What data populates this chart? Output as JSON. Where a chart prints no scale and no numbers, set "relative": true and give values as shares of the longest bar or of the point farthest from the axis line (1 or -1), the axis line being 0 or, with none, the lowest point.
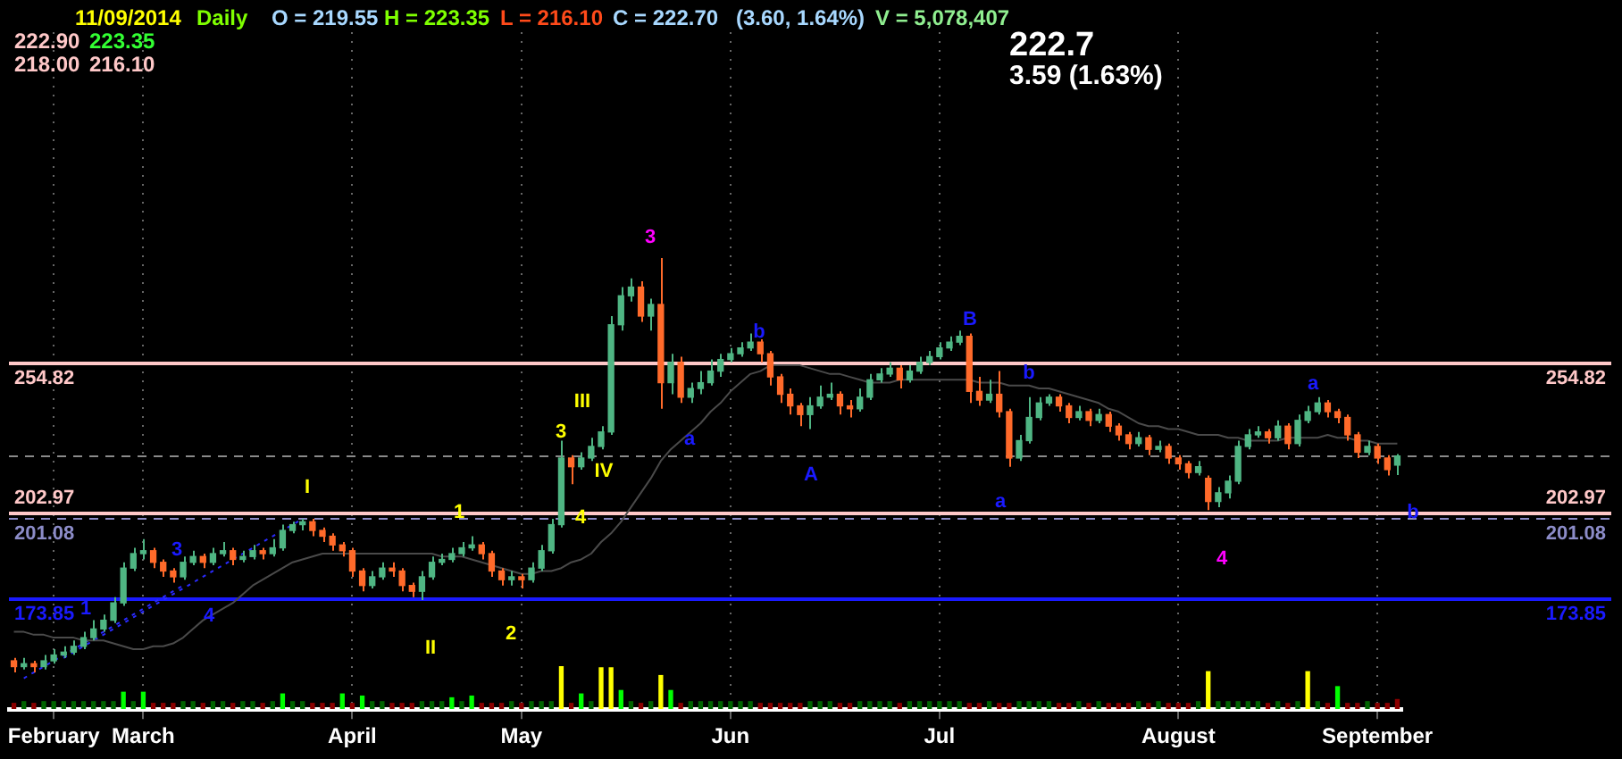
{
  "chart_data": [
    {
      "type": "candlestick",
      "title": "222.7",
      "subtitle": "3.59 (1.63%)",
      "annotations": [
        "11/09/2014",
        "Daily",
        "O = 219.55",
        "H = 223.35",
        "L = 216.10",
        "C = 222.70",
        "(3.60,  1.64%)",
        "V = 5,078,407",
        "222.90",
        "223.35",
        "218.00",
        "216.10",
        "I",
        "1",
        "II",
        "2",
        "III",
        "3",
        "IV",
        "4",
        "3",
        "a",
        "b",
        "A",
        "B",
        "b",
        "a",
        "4",
        "a",
        "b",
        "1",
        "3",
        "4"
      ],
      "categories": [
        null,
        null,
        null,
        null,
        "February",
        null,
        null,
        null,
        null,
        null,
        null,
        null,
        null,
        "March",
        null,
        null,
        null,
        null,
        null,
        null,
        null,
        null,
        null,
        null,
        null,
        null,
        null,
        null,
        null,
        null,
        null,
        null,
        null,
        null,
        "April",
        null,
        null,
        null,
        null,
        null,
        null,
        null,
        null,
        null,
        null,
        null,
        null,
        null,
        null,
        null,
        null,
        "May",
        null,
        null,
        null,
        null,
        null,
        null,
        null,
        null,
        null,
        null,
        null,
        null,
        null,
        null,
        null,
        null,
        null,
        null,
        null,
        null,
        "Jun",
        null,
        null,
        null,
        null,
        null,
        null,
        null,
        null,
        null,
        null,
        null,
        null,
        null,
        null,
        null,
        null,
        null,
        null,
        null,
        null,
        "Jul",
        null,
        null,
        null,
        null,
        null,
        null,
        null,
        null,
        null,
        null,
        null,
        null,
        null,
        null,
        null,
        null,
        null,
        null,
        null,
        null,
        null,
        null,
        null,
        "August",
        null,
        null,
        null,
        null,
        null,
        null,
        null,
        null,
        null,
        null,
        null,
        null,
        null,
        null,
        null,
        null,
        null,
        null,
        null,
        "September",
        null,
        null
      ],
      "ylim": [
        135,
        369
      ],
      "grid": "x",
      "tick_labels": "x",
      "ref_lines": [
        {
          "axis": "y",
          "value": 202.97,
          "label": "202.97",
          "color": "#ffc8c8",
          "line_style": "solid"
        },
        {
          "axis": "y",
          "value": 173.85,
          "label": "173.85",
          "color": "#1a1aff",
          "line_style": "solid"
        },
        {
          "axis": "y",
          "value": 201.08,
          "label": "201.08",
          "color": "#8c8cc8",
          "line_style": "dashed"
        },
        {
          "axis": "y",
          "value": 254.82,
          "label": "254.82",
          "color": "#ffc8c8",
          "line_style": "solid"
        },
        {
          "axis": "y",
          "value": 222.7,
          "color": "#8a8a8a",
          "line_style": "dashed"
        }
      ],
      "series": [
        {
          "type": "line",
          "color": "#4a4a4a",
          "line_style": "solid",
          "values": [
            162,
            162,
            161,
            161,
            160,
            160,
            160,
            159,
            159,
            159,
            158,
            157,
            156,
            156,
            157,
            157,
            158,
            160,
            163,
            166,
            168,
            170,
            172,
            175,
            178,
            180,
            182,
            184,
            186,
            187,
            188,
            189,
            189,
            189,
            189,
            189,
            189,
            189,
            189,
            189,
            189,
            189,
            189,
            188,
            188,
            188,
            187,
            186,
            185,
            184,
            183,
            182,
            182,
            183,
            183,
            184,
            186,
            187,
            189,
            193,
            196,
            200,
            205,
            210,
            215,
            221,
            225,
            228,
            231,
            234,
            238,
            241,
            245,
            248,
            251,
            252,
            254,
            254,
            254,
            254,
            253,
            252,
            251,
            251,
            250,
            249,
            248,
            248,
            248,
            249,
            249,
            249,
            249,
            249,
            249,
            249,
            249,
            248,
            248,
            248,
            247,
            247,
            247,
            246,
            246,
            245,
            244,
            243,
            242,
            241,
            239,
            238,
            236,
            234,
            233,
            233,
            232,
            232,
            231,
            230,
            230,
            230,
            229,
            229,
            228,
            228,
            228,
            228,
            229,
            229,
            229,
            229,
            230,
            229,
            229,
            228,
            228,
            227,
            227,
            227
          ]
        },
        {
          "type": "line",
          "color": "#2a2aff",
          "line_style": "dotted",
          "values": [
            null,
            146,
            148,
            150,
            152,
            154,
            156,
            158,
            160,
            162,
            164,
            166,
            168,
            170,
            172,
            174,
            176,
            178,
            null,
            null,
            null,
            null,
            null,
            null,
            null,
            null,
            null,
            null,
            null,
            null,
            null,
            null,
            null,
            null,
            null,
            null,
            null,
            null,
            null,
            null,
            null,
            null,
            null,
            null,
            null,
            null,
            null,
            null,
            null,
            null,
            null,
            null,
            null,
            null,
            null,
            null,
            null,
            null,
            null,
            null,
            null,
            null,
            null,
            null,
            null,
            null,
            null,
            null,
            null,
            null,
            null,
            null,
            null,
            null,
            null,
            null,
            null,
            null,
            null,
            null,
            null,
            null,
            null,
            null,
            null,
            null,
            null,
            null,
            null,
            null,
            null,
            null,
            null,
            null,
            null,
            null,
            null,
            null,
            null,
            null,
            null,
            null,
            null,
            null,
            null,
            null,
            null,
            null,
            null,
            null,
            null,
            null,
            null,
            null,
            null,
            null,
            null,
            null,
            null,
            null,
            null,
            null,
            null,
            null,
            null,
            null,
            null,
            null,
            null,
            null,
            null,
            null,
            null,
            null,
            null,
            null,
            null,
            null,
            null,
            null
          ]
        },
        {
          "type": "line",
          "color": "#2a2aff",
          "line_style": "dotted",
          "values": [
            null,
            null,
            null,
            null,
            null,
            153,
            155,
            157,
            159,
            161,
            163,
            165,
            167,
            169,
            171,
            173,
            175,
            177,
            179,
            181,
            183,
            185,
            187,
            189,
            191,
            193,
            195,
            197,
            199,
            201,
            null,
            null,
            null,
            null,
            null,
            null,
            null,
            null,
            null,
            null,
            null,
            null,
            null,
            null,
            null,
            null,
            null,
            null,
            null,
            null,
            null,
            null,
            null,
            null,
            null,
            null,
            null,
            null,
            null,
            null,
            null,
            null,
            null,
            null,
            null,
            null,
            null,
            null,
            null,
            null,
            null,
            null,
            null,
            null,
            null,
            null,
            null,
            null,
            null,
            null,
            null,
            null,
            null,
            null,
            null,
            null,
            null,
            null,
            null,
            null,
            null,
            null,
            null,
            null,
            null,
            null,
            null,
            null,
            null,
            null,
            null,
            null,
            null,
            null,
            null,
            null,
            null,
            null,
            null,
            null,
            null,
            null,
            null,
            null,
            null,
            null,
            null,
            null,
            null,
            null,
            null,
            null,
            null,
            null,
            null,
            null,
            null,
            null,
            null,
            null,
            null,
            null,
            null,
            null,
            null,
            null,
            null,
            null,
            null,
            null
          ]
        },
        {
          "ohlc": [
            [
              152,
              153,
              148,
              150
            ],
            [
              150,
              153,
              149,
              151
            ],
            [
              151,
              152,
              148,
              150
            ],
            [
              150,
              154,
              149,
              152
            ],
            [
              152,
              156,
              151,
              154
            ],
            [
              154,
              157,
              153,
              155
            ],
            [
              155,
              159,
              154,
              157
            ],
            [
              157,
              162,
              156,
              160
            ],
            [
              160,
              166,
              159,
              163
            ],
            [
              163,
              168,
              162,
              166
            ],
            [
              166,
              174,
              165,
              172
            ],
            [
              172,
              186,
              171,
              184
            ],
            [
              184,
              191,
              183,
              189
            ],
            [
              189,
              194,
              187,
              190
            ],
            [
              190,
              191,
              184,
              186
            ],
            [
              186,
              187,
              181,
              183
            ],
            [
              183,
              184,
              179,
              181
            ],
            [
              181,
              188,
              180,
              186
            ],
            [
              186,
              190,
              185,
              188
            ],
            [
              188,
              189,
              184,
              186
            ],
            [
              186,
              191,
              185,
              189
            ],
            [
              189,
              193,
              188,
              190
            ],
            [
              190,
              191,
              185,
              187
            ],
            [
              187,
              190,
              186,
              188
            ],
            [
              188,
              192,
              187,
              190
            ],
            [
              190,
              191,
              187,
              189
            ],
            [
              189,
              194,
              188,
              191
            ],
            [
              191,
              199,
              190,
              197
            ],
            [
              197,
              200,
              196,
              199
            ],
            [
              199,
              201,
              197,
              200
            ],
            [
              200,
              201,
              195,
              197
            ],
            [
              197,
              198,
              193,
              195
            ],
            [
              195,
              196,
              190,
              192
            ],
            [
              192,
              193,
              188,
              190
            ],
            [
              190,
              191,
              181,
              183
            ],
            [
              183,
              184,
              176,
              178
            ],
            [
              178,
              183,
              177,
              181
            ],
            [
              181,
              186,
              180,
              184
            ],
            [
              184,
              186,
              181,
              183
            ],
            [
              183,
              184,
              176,
              178
            ],
            [
              178,
              179,
              174,
              176
            ],
            [
              176,
              183,
              173,
              181
            ],
            [
              181,
              188,
              180,
              186
            ],
            [
              186,
              189,
              185,
              187
            ],
            [
              187,
              191,
              186,
              189
            ],
            [
              189,
              193,
              188,
              191
            ],
            [
              191,
              195,
              190,
              192
            ],
            [
              192,
              193,
              187,
              189
            ],
            [
              189,
              190,
              181,
              183
            ],
            [
              183,
              184,
              178,
              180
            ],
            [
              180,
              183,
              178,
              181
            ],
            [
              181,
              182,
              177,
              180
            ],
            [
              180,
              186,
              179,
              184
            ],
            [
              184,
              192,
              183,
              190
            ],
            [
              190,
              201,
              189,
              199
            ],
            [
              199,
              228,
              198,
              222
            ],
            [
              222,
              223,
              213,
              219
            ],
            [
              219,
              224,
              218,
              222
            ],
            [
              222,
              229,
              221,
              226
            ],
            [
              226,
              233,
              225,
              231
            ],
            [
              231,
              271,
              230,
              268
            ],
            [
              268,
              281,
              266,
              278
            ],
            [
              278,
              284,
              276,
              281
            ],
            [
              281,
              283,
              269,
              271
            ],
            [
              271,
              277,
              266,
              275
            ],
            [
              275,
              291,
              239,
              248
            ],
            [
              248,
              258,
              244,
              255
            ],
            [
              255,
              257,
              241,
              243
            ],
            [
              243,
              248,
              241,
              246
            ],
            [
              246,
              252,
              244,
              248
            ],
            [
              248,
              256,
              247,
              252
            ],
            [
              252,
              258,
              250,
              256
            ],
            [
              256,
              260,
              255,
              258
            ],
            [
              258,
              262,
              257,
              260
            ],
            [
              260,
              265,
              259,
              262
            ],
            [
              262,
              263,
              255,
              258
            ],
            [
              258,
              259,
              247,
              250
            ],
            [
              250,
              251,
              241,
              244
            ],
            [
              244,
              246,
              237,
              240
            ],
            [
              240,
              241,
              233,
              237
            ],
            [
              237,
              243,
              232,
              240
            ],
            [
              240,
              247,
              239,
              243
            ],
            [
              243,
              248,
              242,
              244
            ],
            [
              244,
              245,
              237,
              240
            ],
            [
              240,
              242,
              236,
              239
            ],
            [
              239,
              246,
              238,
              243
            ],
            [
              243,
              251,
              242,
              249
            ],
            [
              249,
              253,
              248,
              251
            ],
            [
              251,
              255,
              250,
              253
            ],
            [
              253,
              254,
              246,
              249
            ],
            [
              249,
              254,
              248,
              252
            ],
            [
              252,
              257,
              251,
              255
            ],
            [
              255,
              259,
              254,
              257
            ],
            [
              257,
              262,
              256,
              260
            ],
            [
              260,
              264,
              259,
              262
            ],
            [
              262,
              266,
              261,
              264
            ],
            [
              264,
              265,
              241,
              245
            ],
            [
              245,
              250,
              240,
              242
            ],
            [
              242,
              249,
              241,
              244
            ],
            [
              244,
              252,
              236,
              238
            ],
            [
              238,
              239,
              219,
              222
            ],
            [
              222,
              230,
              221,
              228
            ],
            [
              228,
              243,
              227,
              236
            ],
            [
              236,
              243,
              235,
              241
            ],
            [
              241,
              244,
              240,
              243
            ],
            [
              243,
              244,
              238,
              240
            ],
            [
              240,
              241,
              234,
              236
            ],
            [
              236,
              240,
              235,
              238
            ],
            [
              238,
              239,
              233,
              235
            ],
            [
              235,
              239,
              234,
              237
            ],
            [
              237,
              238,
              231,
              233
            ],
            [
              233,
              234,
              228,
              230
            ],
            [
              230,
              231,
              225,
              227
            ],
            [
              227,
              231,
              226,
              229
            ],
            [
              229,
              230,
              223,
              225
            ],
            [
              225,
              228,
              224,
              226
            ],
            [
              226,
              227,
              220,
              222
            ],
            [
              222,
              223,
              218,
              220
            ],
            [
              220,
              221,
              215,
              217
            ],
            [
              217,
              221,
              216,
              219
            ],
            [
              215,
              216,
              204,
              207
            ],
            [
              207,
              212,
              205,
              210
            ],
            [
              210,
              216,
              208,
              214
            ],
            [
              214,
              228,
              213,
              226
            ],
            [
              226,
              232,
              225,
              230
            ],
            [
              230,
              233,
              229,
              231
            ],
            [
              231,
              232,
              227,
              229
            ],
            [
              229,
              235,
              228,
              233
            ],
            [
              233,
              234,
              225,
              227
            ],
            [
              227,
              237,
              226,
              235
            ],
            [
              235,
              240,
              234,
              238
            ],
            [
              238,
              243,
              237,
              241
            ],
            [
              241,
              242,
              236,
              238
            ],
            [
              238,
              239,
              234,
              236
            ],
            [
              236,
              237,
              228,
              230
            ],
            [
              230,
              231,
              222,
              224
            ],
            [
              224,
              228,
              223,
              226
            ],
            [
              226,
              227,
              220,
              222
            ],
            [
              222,
              223,
              216,
              218
            ],
            [
              219.55,
              223.35,
              216.1,
              222.7
            ]
          ],
          "colors": [
            "#ff6a2a",
            "#4fb583",
            "#ff6a2a",
            "#4fb583",
            "#4fb583",
            "#4fb583",
            "#4fb583",
            "#4fb583",
            "#4fb583",
            "#4fb583",
            "#4fb583",
            "#4fb583",
            "#4fb583",
            "#4fb583",
            "#ff6a2a",
            "#ff6a2a",
            "#ff6a2a",
            "#4fb583",
            "#4fb583",
            "#ff6a2a",
            "#4fb583",
            "#4fb583",
            "#ff6a2a",
            "#4fb583",
            "#4fb583",
            "#ff6a2a",
            "#4fb583",
            "#4fb583",
            "#4fb583",
            "#4fb583",
            "#ff6a2a",
            "#ff6a2a",
            "#ff6a2a",
            "#ff6a2a",
            "#ff6a2a",
            "#ff6a2a",
            "#4fb583",
            "#4fb583",
            "#ff6a2a",
            "#ff6a2a",
            "#ff6a2a",
            "#4fb583",
            "#4fb583",
            "#4fb583",
            "#4fb583",
            "#4fb583",
            "#4fb583",
            "#ff6a2a",
            "#ff6a2a",
            "#ff6a2a",
            "#4fb583",
            "#ff6a2a",
            "#4fb583",
            "#4fb583",
            "#4fb583",
            "#4fb583",
            "#ff6a2a",
            "#4fb583",
            "#4fb583",
            "#4fb583",
            "#4fb583",
            "#4fb583",
            "#4fb583",
            "#ff6a2a",
            "#4fb583",
            "#ff6a2a",
            "#4fb583",
            "#ff6a2a",
            "#4fb583",
            "#4fb583",
            "#4fb583",
            "#4fb583",
            "#4fb583",
            "#4fb583",
            "#4fb583",
            "#ff6a2a",
            "#ff6a2a",
            "#ff6a2a",
            "#ff6a2a",
            "#ff6a2a",
            "#4fb583",
            "#4fb583",
            "#4fb583",
            "#ff6a2a",
            "#ff6a2a",
            "#4fb583",
            "#4fb583",
            "#4fb583",
            "#4fb583",
            "#ff6a2a",
            "#4fb583",
            "#4fb583",
            "#4fb583",
            "#4fb583",
            "#4fb583",
            "#4fb583",
            "#ff6a2a",
            "#ff6a2a",
            "#4fb583",
            "#ff6a2a",
            "#ff6a2a",
            "#4fb583",
            "#4fb583",
            "#4fb583",
            "#4fb583",
            "#ff6a2a",
            "#ff6a2a",
            "#4fb583",
            "#ff6a2a",
            "#4fb583",
            "#ff6a2a",
            "#ff6a2a",
            "#ff6a2a",
            "#4fb583",
            "#ff6a2a",
            "#4fb583",
            "#ff6a2a",
            "#ff6a2a",
            "#ff6a2a",
            "#4fb583",
            "#ff6a2a",
            "#4fb583",
            "#4fb583",
            "#4fb583",
            "#4fb583",
            "#4fb583",
            "#ff6a2a",
            "#4fb583",
            "#ff6a2a",
            "#4fb583",
            "#4fb583",
            "#4fb583",
            "#ff6a2a",
            "#ff6a2a",
            "#ff6a2a",
            "#ff6a2a",
            "#4fb583",
            "#ff6a2a",
            "#ff6a2a",
            "#4fb583"
          ]
        }
      ]
    },
    {
      "type": "bar",
      "relative": true,
      "tick_labels": false,
      "categories": [
        null,
        null,
        null,
        null,
        null,
        null,
        null,
        null,
        null,
        null,
        null,
        null,
        null,
        null,
        null,
        null,
        null,
        null,
        null,
        null,
        null,
        null,
        null,
        null,
        null,
        null,
        null,
        null,
        null,
        null,
        null,
        null,
        null,
        null,
        null,
        null,
        null,
        null,
        null,
        null,
        null,
        null,
        null,
        null,
        null,
        null,
        null,
        null,
        null,
        null,
        null,
        null,
        null,
        null,
        null,
        null,
        null,
        null,
        null,
        null,
        null,
        null,
        null,
        null,
        null,
        null,
        null,
        null,
        null,
        null,
        null,
        null,
        null,
        null,
        null,
        null,
        null,
        null,
        null,
        null,
        null,
        null,
        null,
        null,
        null,
        null,
        null,
        null,
        null,
        null,
        null,
        null,
        null,
        null,
        null,
        null,
        null,
        null,
        null,
        null,
        null,
        null,
        null,
        null,
        null,
        null,
        null,
        null,
        null,
        null,
        null,
        null,
        null,
        null,
        null,
        null,
        null,
        null,
        null,
        null,
        null,
        null,
        null,
        null,
        null,
        null,
        null,
        null,
        null,
        null,
        null,
        null,
        null,
        null,
        null,
        null,
        null,
        null,
        null,
        null
      ],
      "values": [
        0.13,
        0.17,
        0.13,
        0.17,
        0.17,
        0.17,
        0.17,
        0.17,
        0.17,
        0.17,
        0.17,
        0.39,
        0.17,
        0.39,
        0.13,
        0.13,
        0.13,
        0.17,
        0.17,
        0.13,
        0.17,
        0.17,
        0.13,
        0.17,
        0.17,
        0.13,
        0.17,
        0.35,
        0.17,
        0.17,
        0.13,
        0.13,
        0.13,
        0.35,
        0.13,
        0.3,
        0.17,
        0.17,
        0.13,
        0.13,
        0.13,
        0.17,
        0.17,
        0.17,
        0.26,
        0.17,
        0.3,
        0.13,
        0.13,
        0.13,
        0.17,
        0.13,
        0.17,
        0.17,
        0.17,
        1,
        0.13,
        0.35,
        0.17,
        0.96,
        0.96,
        0.43,
        0.17,
        0.13,
        0.17,
        0.78,
        0.43,
        0.13,
        0.17,
        0.17,
        0.17,
        0.17,
        0.17,
        0.17,
        0.17,
        0.13,
        0.13,
        0.13,
        0.13,
        0.13,
        0.17,
        0.17,
        0.17,
        0.13,
        0.13,
        0.17,
        0.17,
        0.17,
        0.17,
        0.13,
        0.17,
        0.17,
        0.17,
        0.17,
        0.17,
        0.17,
        0.13,
        0.13,
        0.17,
        0.13,
        0.13,
        0.17,
        0.17,
        0.17,
        0.17,
        0.13,
        0.13,
        0.17,
        0.13,
        0.17,
        0.13,
        0.13,
        0.13,
        0.17,
        0.13,
        0.17,
        0.13,
        0.13,
        0.13,
        0.17,
        0.87,
        0.17,
        0.17,
        0.17,
        0.17,
        0.17,
        0.13,
        0.17,
        0.13,
        0.17,
        0.87,
        0.17,
        0.13,
        0.52,
        0.13,
        0.13,
        0.17,
        0.13,
        0.13,
        0.22
      ],
      "colors": [
        "#8b0000",
        "#006400",
        "#8b0000",
        "#006400",
        "#006400",
        "#006400",
        "#006400",
        "#006400",
        "#006400",
        "#006400",
        "#006400",
        "#00ff00",
        "#006400",
        "#00ff00",
        "#8b0000",
        "#8b0000",
        "#8b0000",
        "#006400",
        "#006400",
        "#8b0000",
        "#006400",
        "#006400",
        "#8b0000",
        "#006400",
        "#006400",
        "#8b0000",
        "#006400",
        "#00ff00",
        "#006400",
        "#006400",
        "#8b0000",
        "#8b0000",
        "#8b0000",
        "#00ff00",
        "#8b0000",
        "#00ff00",
        "#006400",
        "#006400",
        "#8b0000",
        "#8b0000",
        "#8b0000",
        "#006400",
        "#006400",
        "#006400",
        "#00ff00",
        "#006400",
        "#00ff00",
        "#8b0000",
        "#8b0000",
        "#8b0000",
        "#006400",
        "#8b0000",
        "#006400",
        "#006400",
        "#006400",
        "#ffff00",
        "#8b0000",
        "#00ff00",
        "#006400",
        "#ffff00",
        "#ffff00",
        "#00ff00",
        "#006400",
        "#8b0000",
        "#006400",
        "#ffff00",
        "#00ff00",
        "#8b0000",
        "#006400",
        "#006400",
        "#006400",
        "#006400",
        "#006400",
        "#006400",
        "#006400",
        "#8b0000",
        "#8b0000",
        "#8b0000",
        "#8b0000",
        "#8b0000",
        "#006400",
        "#006400",
        "#006400",
        "#8b0000",
        "#8b0000",
        "#006400",
        "#006400",
        "#006400",
        "#006400",
        "#8b0000",
        "#006400",
        "#006400",
        "#006400",
        "#006400",
        "#006400",
        "#006400",
        "#8b0000",
        "#8b0000",
        "#006400",
        "#8b0000",
        "#8b0000",
        "#006400",
        "#006400",
        "#006400",
        "#006400",
        "#8b0000",
        "#8b0000",
        "#006400",
        "#8b0000",
        "#006400",
        "#8b0000",
        "#8b0000",
        "#8b0000",
        "#006400",
        "#8b0000",
        "#006400",
        "#8b0000",
        "#8b0000",
        "#8b0000",
        "#006400",
        "#ffff00",
        "#006400",
        "#006400",
        "#006400",
        "#006400",
        "#006400",
        "#8b0000",
        "#006400",
        "#8b0000",
        "#006400",
        "#ffff00",
        "#006400",
        "#8b0000",
        "#00ff00",
        "#8b0000",
        "#8b0000",
        "#006400",
        "#8b0000",
        "#8b0000",
        "#8b0000"
      ]
    }
  ]
}
